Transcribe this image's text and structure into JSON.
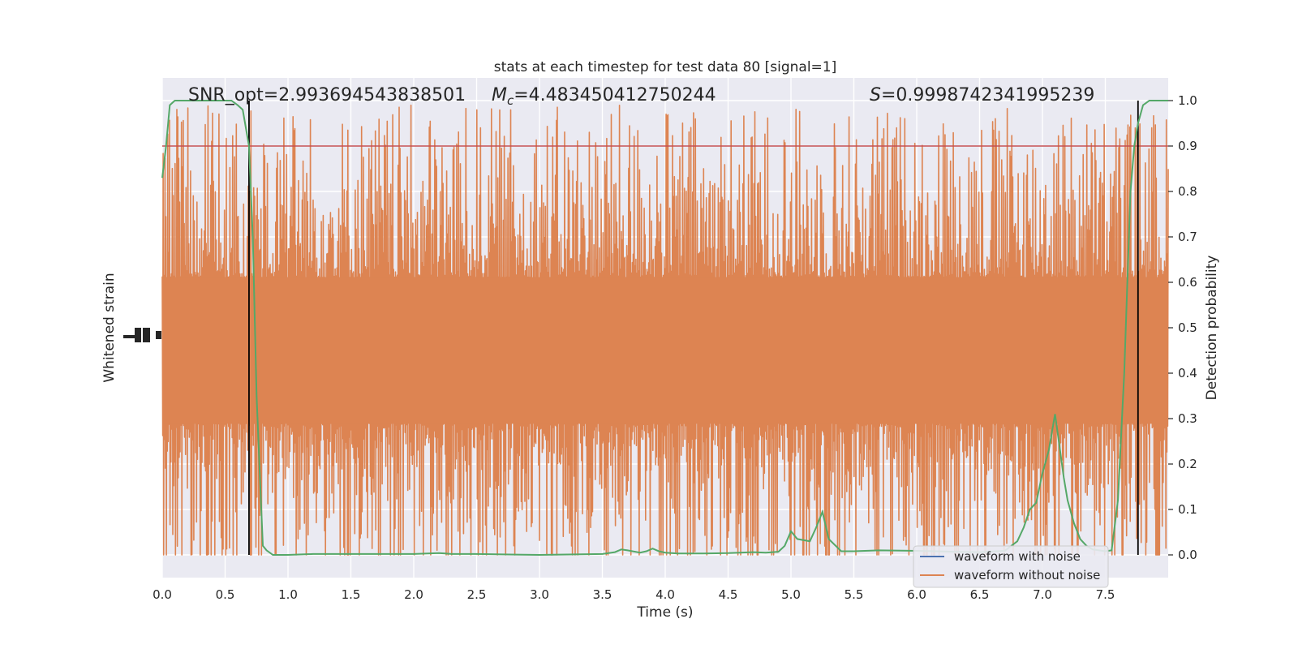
{
  "chart_data": {
    "type": "line",
    "title": "stats at each timestep for test data 80 [signal=1]",
    "xlabel": "Time (s)",
    "ylabel_left": "Whitened strain",
    "ylabel_right": "Detection probability",
    "xlim": [
      0,
      8
    ],
    "ylim_right": [
      -0.05,
      1.05
    ],
    "x_ticks": [
      "0.0",
      "0.5",
      "1.0",
      "1.5",
      "2.0",
      "2.5",
      "3.0",
      "3.5",
      "4.0",
      "4.5",
      "5.0",
      "5.5",
      "6.0",
      "6.5",
      "7.0",
      "7.5"
    ],
    "y_ticks_right": [
      "0.0",
      "0.1",
      "0.2",
      "0.3",
      "0.4",
      "0.5",
      "0.6",
      "0.7",
      "0.8",
      "0.9",
      "1.0"
    ],
    "grid": true,
    "annotations": {
      "snr": "SNR_opt=2.993694543838501",
      "mc_symbol": "M",
      "mc_sub": "c",
      "mc_value": "=4.483450412750244",
      "s_symbol": "S",
      "s_value": "=0.9998742341995239"
    },
    "threshold": {
      "value": 0.9,
      "color": "#c44e52"
    },
    "vertical_lines": [
      0.69,
      7.76
    ],
    "legend": {
      "placement": "lower-right",
      "entries": [
        {
          "label": "waveform with noise",
          "color": "#4c72b0"
        },
        {
          "label": "waveform without noise",
          "color": "#dd8452"
        }
      ]
    },
    "strain_series": {
      "name": "waveform without noise",
      "color": "#dd8452",
      "band_center": 0.45,
      "band_core_half_width": 0.16,
      "envelope_max_top": 1.0,
      "envelope_max_bottom": 0.0
    },
    "probability_series": {
      "color": "#55a868",
      "x": [
        0.0,
        0.03,
        0.06,
        0.1,
        0.15,
        0.2,
        0.3,
        0.4,
        0.5,
        0.55,
        0.6,
        0.64,
        0.69,
        0.72,
        0.75,
        0.78,
        0.8,
        0.83,
        0.88,
        0.92,
        1.0,
        1.2,
        1.5,
        2.0,
        2.2,
        2.25,
        2.3,
        2.5,
        3.0,
        3.5,
        3.55,
        3.6,
        3.65,
        3.7,
        3.8,
        3.85,
        3.9,
        3.95,
        4.0,
        4.1,
        4.3,
        4.5,
        4.7,
        4.8,
        4.9,
        4.95,
        5.0,
        5.05,
        5.15,
        5.2,
        5.25,
        5.3,
        5.4,
        5.5,
        5.7,
        6.0,
        6.3,
        6.5,
        6.7,
        6.8,
        6.85,
        6.9,
        6.95,
        7.0,
        7.05,
        7.1,
        7.13,
        7.17,
        7.2,
        7.25,
        7.3,
        7.35,
        7.4,
        7.5,
        7.55,
        7.6,
        7.65,
        7.7,
        7.73,
        7.76,
        7.8,
        7.85,
        7.9,
        7.95,
        8.0
      ],
      "y": [
        0.83,
        0.9,
        0.99,
        1.0,
        1.0,
        1.0,
        1.0,
        1.0,
        1.0,
        1.0,
        0.99,
        0.98,
        0.9,
        0.7,
        0.35,
        0.15,
        0.02,
        0.01,
        0.0,
        0.0,
        0.0,
        0.002,
        0.002,
        0.002,
        0.004,
        0.003,
        0.002,
        0.002,
        0.0,
        0.002,
        0.004,
        0.006,
        0.012,
        0.01,
        0.005,
        0.008,
        0.014,
        0.008,
        0.005,
        0.003,
        0.003,
        0.004,
        0.006,
        0.005,
        0.007,
        0.02,
        0.052,
        0.035,
        0.03,
        0.06,
        0.095,
        0.035,
        0.008,
        0.008,
        0.01,
        0.009,
        0.007,
        0.006,
        0.009,
        0.03,
        0.06,
        0.1,
        0.115,
        0.18,
        0.23,
        0.31,
        0.25,
        0.17,
        0.12,
        0.07,
        0.035,
        0.02,
        0.012,
        0.008,
        0.01,
        0.12,
        0.4,
        0.8,
        0.9,
        0.95,
        0.99,
        1.0,
        1.0,
        1.0,
        1.0
      ]
    }
  }
}
